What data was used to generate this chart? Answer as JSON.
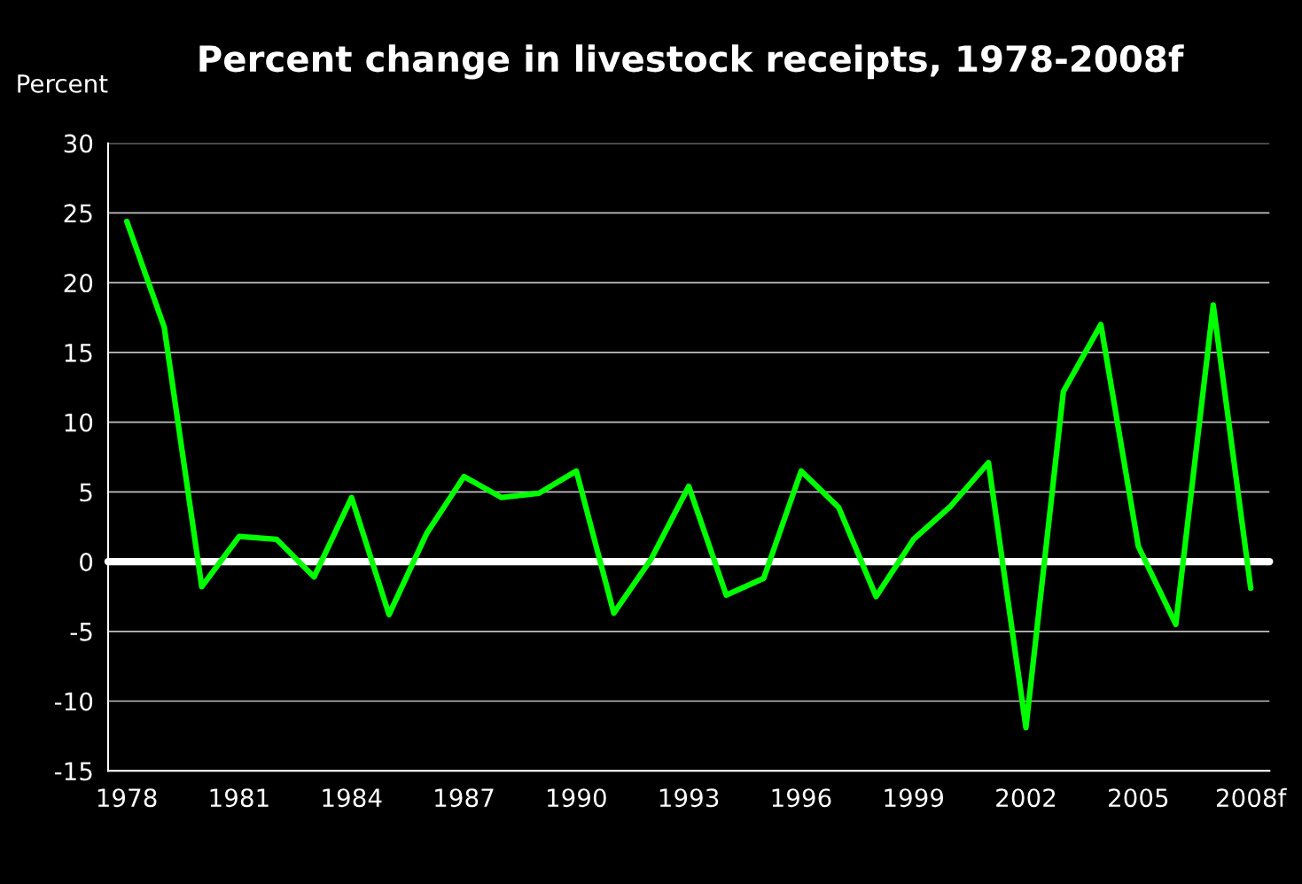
{
  "chart_data": {
    "type": "line",
    "title": "Percent change in livestock receipts, 1978-2008f",
    "ylabel": "Percent",
    "categories": [
      "1978",
      null,
      null,
      "1981",
      null,
      null,
      "1984",
      null,
      null,
      "1987",
      null,
      null,
      "1990",
      null,
      null,
      "1993",
      null,
      null,
      "1996",
      null,
      null,
      "1999",
      null,
      null,
      "2002",
      null,
      null,
      "2005",
      null,
      null,
      "2008f"
    ],
    "series": [
      {
        "color": "#00ff00",
        "values": [
          24.4,
          16.8,
          -1.8,
          1.8,
          1.6,
          -1.1,
          4.6,
          -3.8,
          2.0,
          6.1,
          4.6,
          4.9,
          6.5,
          -3.7,
          0.2,
          5.4,
          -2.4,
          -1.2,
          6.5,
          3.9,
          -2.5,
          1.6,
          4.0,
          7.1,
          -11.9,
          12.2,
          17.0,
          1.1,
          -4.5,
          18.4,
          -1.9
        ]
      }
    ],
    "ylim": [
      -15,
      30
    ],
    "yticks": [
      -15,
      -10,
      -5,
      0,
      5,
      10,
      15,
      20,
      25,
      30
    ],
    "grid": "y",
    "marker": "none",
    "line_style": "solid",
    "ref_lines": [
      {
        "axis": "y",
        "value": 0,
        "color": "#ffffff"
      }
    ]
  }
}
